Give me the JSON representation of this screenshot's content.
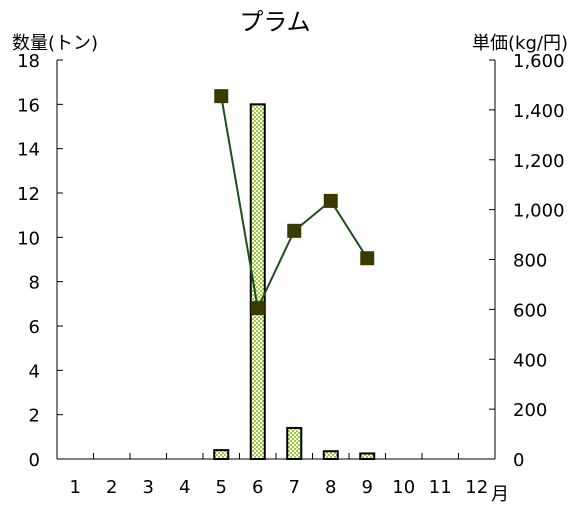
{
  "chart_data": {
    "type": "bar+line",
    "title": "プラム",
    "y_left_label": "数量(トン)",
    "y_right_label": "単価(kg/円)",
    "x_unit_label": "月",
    "categories": [
      "1",
      "2",
      "3",
      "4",
      "5",
      "6",
      "7",
      "8",
      "9",
      "10",
      "11",
      "12"
    ],
    "y_left_ticks": [
      "0",
      "2",
      "4",
      "6",
      "8",
      "10",
      "12",
      "14",
      "16",
      "18"
    ],
    "y_right_ticks": [
      "0",
      "200",
      "400",
      "600",
      "800",
      "1,000",
      "1,200",
      "1,400",
      "1,600"
    ],
    "y_left_lim": [
      0,
      18
    ],
    "y_right_lim": [
      0,
      1600
    ],
    "series": [
      {
        "kind": "bar",
        "axis": "left",
        "values": [
          null,
          null,
          null,
          null,
          0.4,
          16.0,
          1.4,
          0.35,
          0.25,
          null,
          null,
          null
        ]
      },
      {
        "kind": "line",
        "axis": "right",
        "values": [
          null,
          null,
          null,
          null,
          1455,
          605,
          915,
          1035,
          805,
          null,
          null,
          null
        ]
      }
    ],
    "colors": {
      "bar_fill": "#9acd32",
      "bar_pattern": "#ffffff",
      "bar_stroke": "#000000",
      "line": "#1e4d1e",
      "marker": "#3a3a00"
    }
  }
}
